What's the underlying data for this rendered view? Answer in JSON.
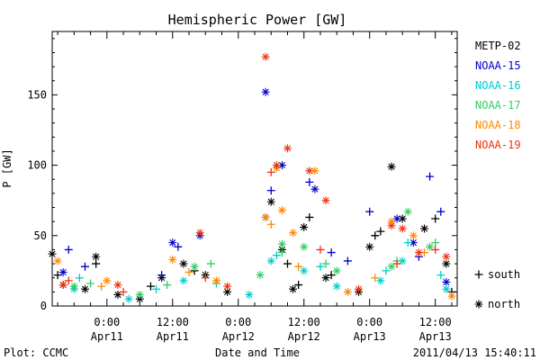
{
  "chart_data": {
    "type": "scatter",
    "title": "Hemispheric Power [GW]",
    "ylabel": "P [GW]",
    "xlabel": "Date and Time",
    "ylim": [
      0,
      195
    ],
    "xlim": [
      "2011-04-10T14:00",
      "2011-04-13T16:00"
    ],
    "yticks": [
      0,
      50,
      100,
      150
    ],
    "xticks": [
      {
        "time": "2011-04-11T00:00",
        "line1": "0:00",
        "line2": "Apr11"
      },
      {
        "time": "2011-04-11T12:00",
        "line1": "12:00",
        "line2": "Apr11"
      },
      {
        "time": "2011-04-12T00:00",
        "line1": "0:00",
        "line2": "Apr12"
      },
      {
        "time": "2011-04-12T12:00",
        "line1": "12:00",
        "line2": "Apr12"
      },
      {
        "time": "2011-04-13T00:00",
        "line1": "0:00",
        "line2": "Apr13"
      },
      {
        "time": "2011-04-13T12:00",
        "line1": "12:00",
        "line2": "Apr13"
      }
    ],
    "grid": false,
    "legend_position": "right",
    "markers": [
      {
        "symbol": "+",
        "label": "south"
      },
      {
        "symbol": "*",
        "label": "north"
      }
    ],
    "series": [
      {
        "name": "METP-02",
        "color": "#000000",
        "marker": "*",
        "points": [
          [
            "2011-04-10T14:00",
            37
          ],
          [
            "2011-04-10T16:00",
            15
          ],
          [
            "2011-04-10T20:00",
            12
          ],
          [
            "2011-04-10T22:00",
            35
          ],
          [
            "2011-04-11T02:00",
            8
          ],
          [
            "2011-04-11T06:00",
            5
          ],
          [
            "2011-04-11T10:00",
            20
          ],
          [
            "2011-04-11T14:00",
            30
          ],
          [
            "2011-04-11T18:00",
            22
          ],
          [
            "2011-04-11T22:00",
            10
          ],
          [
            "2011-04-12T05:00",
            63
          ],
          [
            "2011-04-12T06:00",
            74
          ],
          [
            "2011-04-12T08:00",
            40
          ],
          [
            "2011-04-12T10:00",
            12
          ],
          [
            "2011-04-12T12:00",
            56
          ],
          [
            "2011-04-12T16:00",
            20
          ],
          [
            "2011-04-12T22:00",
            10
          ],
          [
            "2011-04-13T00:00",
            42
          ],
          [
            "2011-04-13T04:00",
            99
          ],
          [
            "2011-04-13T06:00",
            62
          ],
          [
            "2011-04-13T10:00",
            55
          ],
          [
            "2011-04-13T14:00",
            30
          ]
        ]
      },
      {
        "name": "METP-02",
        "color": "#000000",
        "marker": "+",
        "points": [
          [
            "2011-04-10T15:00",
            22
          ],
          [
            "2011-04-10T22:00",
            30
          ],
          [
            "2011-04-11T08:00",
            14
          ],
          [
            "2011-04-11T16:00",
            25
          ],
          [
            "2011-04-12T09:00",
            30
          ],
          [
            "2011-04-12T11:00",
            15
          ],
          [
            "2011-04-12T13:00",
            63
          ],
          [
            "2011-04-12T17:00",
            22
          ],
          [
            "2011-04-13T01:00",
            50
          ],
          [
            "2011-04-13T02:00",
            53
          ],
          [
            "2011-04-13T12:00",
            62
          ],
          [
            "2011-04-13T15:00",
            10
          ]
        ]
      },
      {
        "name": "NOAA-15",
        "color": "#0000cc",
        "marker": "*",
        "points": [
          [
            "2011-04-10T16:00",
            24
          ],
          [
            "2011-04-11T12:00",
            45
          ],
          [
            "2011-04-11T17:00",
            50
          ],
          [
            "2011-04-12T05:00",
            152
          ],
          [
            "2011-04-12T08:00",
            100
          ],
          [
            "2011-04-12T14:00",
            83
          ],
          [
            "2011-04-13T05:00",
            62
          ],
          [
            "2011-04-13T08:00",
            45
          ],
          [
            "2011-04-13T14:00",
            17
          ]
        ]
      },
      {
        "name": "NOAA-15",
        "color": "#0000cc",
        "marker": "+",
        "points": [
          [
            "2011-04-10T17:00",
            40
          ],
          [
            "2011-04-10T20:00",
            28
          ],
          [
            "2011-04-11T10:00",
            22
          ],
          [
            "2011-04-11T13:00",
            42
          ],
          [
            "2011-04-12T06:00",
            82
          ],
          [
            "2011-04-12T13:00",
            88
          ],
          [
            "2011-04-12T17:00",
            38
          ],
          [
            "2011-04-12T20:00",
            32
          ],
          [
            "2011-04-13T00:00",
            67
          ],
          [
            "2011-04-13T09:00",
            35
          ],
          [
            "2011-04-13T11:00",
            92
          ],
          [
            "2011-04-13T13:00",
            67
          ]
        ]
      },
      {
        "name": "NOAA-16",
        "color": "#00cccc",
        "marker": "*",
        "points": [
          [
            "2011-04-10T18:00",
            12
          ],
          [
            "2011-04-11T04:00",
            5
          ],
          [
            "2011-04-11T14:00",
            18
          ],
          [
            "2011-04-12T02:00",
            8
          ],
          [
            "2011-04-12T06:00",
            32
          ],
          [
            "2011-04-12T12:00",
            25
          ],
          [
            "2011-04-12T18:00",
            14
          ],
          [
            "2011-04-13T02:00",
            18
          ],
          [
            "2011-04-13T06:00",
            32
          ],
          [
            "2011-04-13T14:00",
            12
          ]
        ]
      },
      {
        "name": "NOAA-16",
        "color": "#00cccc",
        "marker": "+",
        "points": [
          [
            "2011-04-10T19:00",
            20
          ],
          [
            "2011-04-11T09:00",
            12
          ],
          [
            "2011-04-11T20:00",
            16
          ],
          [
            "2011-04-12T07:00",
            36
          ],
          [
            "2011-04-12T15:00",
            28
          ],
          [
            "2011-04-13T03:00",
            25
          ],
          [
            "2011-04-13T07:00",
            45
          ],
          [
            "2011-04-13T13:00",
            22
          ]
        ]
      },
      {
        "name": "NOAA-17",
        "color": "#33cc66",
        "marker": "*",
        "points": [
          [
            "2011-04-10T18:00",
            14
          ],
          [
            "2011-04-11T06:00",
            8
          ],
          [
            "2011-04-11T16:00",
            28
          ],
          [
            "2011-04-12T04:00",
            22
          ],
          [
            "2011-04-12T08:00",
            44
          ],
          [
            "2011-04-12T12:00",
            42
          ],
          [
            "2011-04-12T18:00",
            25
          ],
          [
            "2011-04-13T04:00",
            28
          ],
          [
            "2011-04-13T07:00",
            67
          ],
          [
            "2011-04-13T11:00",
            42
          ]
        ]
      },
      {
        "name": "NOAA-17",
        "color": "#33cc66",
        "marker": "+",
        "points": [
          [
            "2011-04-10T21:00",
            16
          ],
          [
            "2011-04-11T11:00",
            15
          ],
          [
            "2011-04-11T19:00",
            30
          ],
          [
            "2011-04-12T08:00",
            38
          ],
          [
            "2011-04-12T16:00",
            30
          ],
          [
            "2011-04-13T05:00",
            32
          ],
          [
            "2011-04-13T12:00",
            45
          ]
        ]
      },
      {
        "name": "NOAA-18",
        "color": "#ff8800",
        "marker": "*",
        "points": [
          [
            "2011-04-10T15:00",
            32
          ],
          [
            "2011-04-11T00:00",
            18
          ],
          [
            "2011-04-11T12:00",
            33
          ],
          [
            "2011-04-11T20:00",
            18
          ],
          [
            "2011-04-12T05:00",
            63
          ],
          [
            "2011-04-12T07:00",
            98
          ],
          [
            "2011-04-12T08:00",
            68
          ],
          [
            "2011-04-12T10:00",
            52
          ],
          [
            "2011-04-12T14:00",
            96
          ],
          [
            "2011-04-12T20:00",
            10
          ],
          [
            "2011-04-13T04:00",
            60
          ],
          [
            "2011-04-13T08:00",
            50
          ],
          [
            "2011-04-13T15:00",
            7
          ]
        ]
      },
      {
        "name": "NOAA-18",
        "color": "#ff8800",
        "marker": "+",
        "points": [
          [
            "2011-04-10T23:00",
            14
          ],
          [
            "2011-04-11T15:00",
            24
          ],
          [
            "2011-04-12T06:00",
            58
          ],
          [
            "2011-04-12T11:00",
            28
          ],
          [
            "2011-04-13T01:00",
            20
          ],
          [
            "2011-04-13T10:00",
            38
          ]
        ]
      },
      {
        "name": "NOAA-19",
        "color": "#ee3311",
        "marker": "*",
        "points": [
          [
            "2011-04-10T16:00",
            15
          ],
          [
            "2011-04-11T02:00",
            15
          ],
          [
            "2011-04-11T17:00",
            52
          ],
          [
            "2011-04-11T22:00",
            14
          ],
          [
            "2011-04-12T05:00",
            177
          ],
          [
            "2011-04-12T07:00",
            100
          ],
          [
            "2011-04-12T09:00",
            112
          ],
          [
            "2011-04-12T13:00",
            96
          ],
          [
            "2011-04-12T16:00",
            75
          ],
          [
            "2011-04-12T22:00",
            12
          ],
          [
            "2011-04-13T04:00",
            57
          ],
          [
            "2011-04-13T06:00",
            55
          ],
          [
            "2011-04-13T09:00",
            38
          ],
          [
            "2011-04-13T14:00",
            35
          ]
        ]
      },
      {
        "name": "NOAA-19",
        "color": "#ee3311",
        "marker": "+",
        "points": [
          [
            "2011-04-10T17:00",
            18
          ],
          [
            "2011-04-11T03:00",
            10
          ],
          [
            "2011-04-11T18:00",
            20
          ],
          [
            "2011-04-12T06:00",
            95
          ],
          [
            "2011-04-12T15:00",
            40
          ],
          [
            "2011-04-13T05:00",
            30
          ],
          [
            "2011-04-13T12:00",
            40
          ]
        ]
      }
    ]
  },
  "footer": {
    "left": "Plot: CCMC",
    "right": "2011/04/13 15:40:11"
  }
}
